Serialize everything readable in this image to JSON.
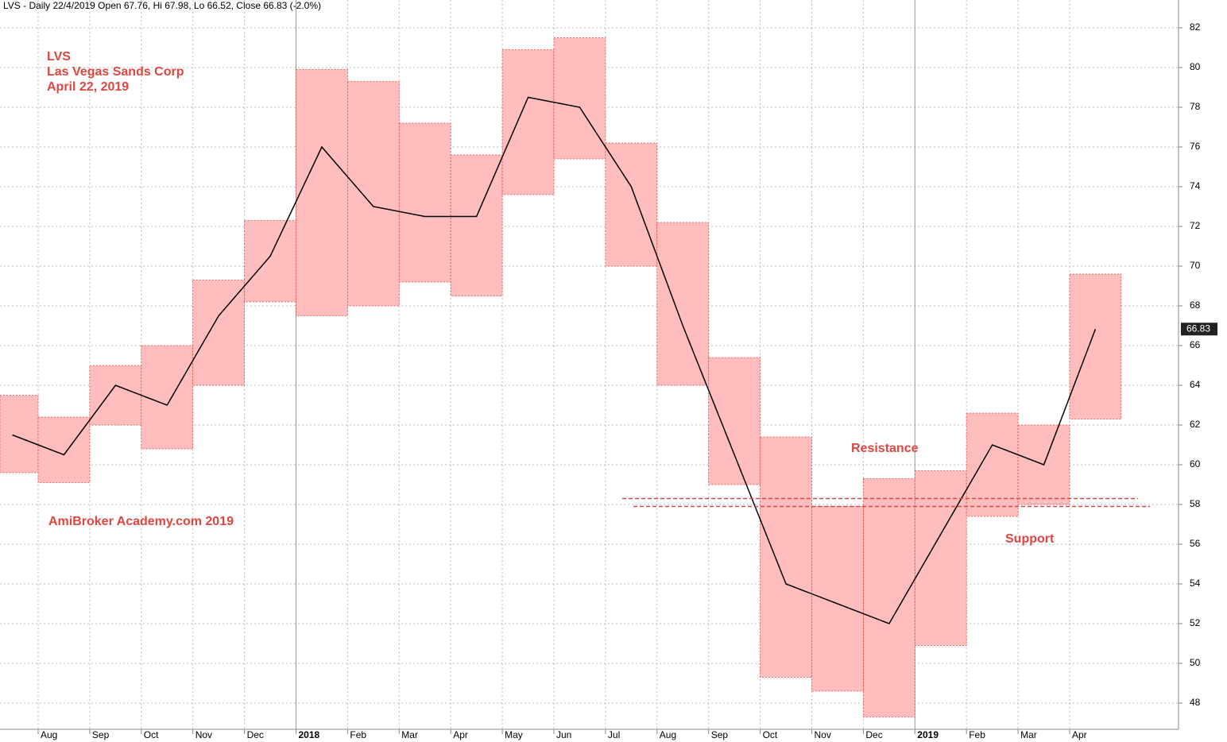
{
  "chart_data": {
    "type": "range-box",
    "header": "LVS - Daily 22/4/2019 Open 67.76, Hi 67.98, Lo 66.52, Close 66.83 (-2.0%)",
    "annotations": [
      "LVS",
      "Las Vegas Sands Corp",
      "April 22, 2019",
      "AmiBroker Academy.com  2019",
      "Resistance",
      "Support"
    ],
    "categories": [
      null,
      "Aug",
      "Sep",
      "Oct",
      "Nov",
      "Dec",
      "2018",
      "Feb",
      "Mar",
      "Apr",
      "May",
      "Jun",
      "Jul",
      "Aug",
      "Sep",
      "Oct",
      "Nov",
      "Dec",
      "2019",
      "Feb",
      "Mar",
      "Apr"
    ],
    "high": [
      63.5,
      62.4,
      65.0,
      66.0,
      69.3,
      72.3,
      79.9,
      79.3,
      77.2,
      75.6,
      80.9,
      81.5,
      76.2,
      72.2,
      65.4,
      61.4,
      57.9,
      59.3,
      59.7,
      62.6,
      62.0,
      69.6
    ],
    "low": [
      59.6,
      59.1,
      62.0,
      60.8,
      64.0,
      68.2,
      67.5,
      68.0,
      69.2,
      68.5,
      73.6,
      75.4,
      70.0,
      64.0,
      59.0,
      49.3,
      48.6,
      47.3,
      50.9,
      57.4,
      58.0,
      62.3
    ],
    "close": [
      61.5,
      60.5,
      64.0,
      63.0,
      67.5,
      70.5,
      76.0,
      73.0,
      72.5,
      72.5,
      78.5,
      78.0,
      74.0,
      67.0,
      60.5,
      54.0,
      53.0,
      52.0,
      56.5,
      61.0,
      60.0,
      66.83
    ],
    "color": "#ffbdbd",
    "line_color": "#000000",
    "levels": [
      {
        "value": 58.3,
        "color": "#e0453f"
      },
      {
        "value": 57.9,
        "color": "#e0453f"
      }
    ],
    "ylim": [
      46.8,
      83.4
    ],
    "yticks": [
      48,
      50,
      52,
      54,
      56,
      58,
      60,
      62,
      64,
      66,
      68,
      70,
      72,
      74,
      76,
      78,
      80,
      82
    ],
    "grid": true
  }
}
